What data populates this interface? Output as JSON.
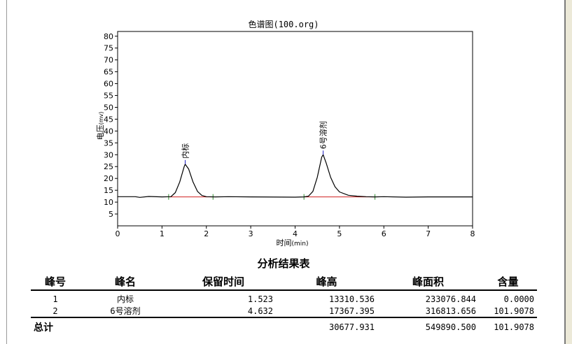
{
  "chart_data": {
    "type": "line",
    "title": "色谱图(100.org)",
    "xlabel_main": "时间",
    "xlabel_unit": "(min)",
    "ylabel_main": "电压",
    "ylabel_unit": "(mv)",
    "xlim": [
      0,
      8
    ],
    "ylim": [
      0,
      82
    ],
    "xticks": [
      0,
      1,
      2,
      3,
      4,
      5,
      6,
      7,
      8
    ],
    "yticks": [
      5,
      10,
      15,
      20,
      25,
      30,
      35,
      40,
      45,
      50,
      55,
      60,
      65,
      70,
      75,
      80
    ],
    "grid": false,
    "baseline": 12.2,
    "series": [
      {
        "x": [
          0.0,
          0.4,
          0.5,
          0.7,
          1.0,
          1.2,
          1.3,
          1.4,
          1.5,
          1.523,
          1.6,
          1.7,
          1.8,
          1.9,
          2.0,
          2.2,
          2.5,
          3.0,
          4.0,
          4.2,
          4.3,
          4.4,
          4.5,
          4.6,
          4.632,
          4.7,
          4.8,
          4.9,
          5.0,
          5.2,
          5.4,
          5.6,
          5.8,
          6.0,
          6.5,
          7.0,
          7.5,
          8.0
        ],
        "values": [
          12.3,
          12.3,
          12.0,
          12.4,
          12.2,
          12.3,
          14.0,
          18.5,
          25.0,
          26.0,
          24.0,
          18.5,
          14.5,
          12.8,
          12.3,
          12.2,
          12.3,
          12.2,
          12.1,
          12.2,
          12.5,
          14.5,
          20.5,
          29.0,
          30.0,
          26.5,
          20.5,
          16.5,
          14.3,
          12.9,
          12.5,
          12.3,
          12.2,
          12.3,
          12.1,
          12.2,
          12.2,
          12.2
        ]
      }
    ],
    "peak_labels": [
      {
        "text": "内标",
        "x": 1.523,
        "y": 26.0
      },
      {
        "text": "6号溶剂",
        "x": 4.632,
        "y": 30.0
      }
    ],
    "integration_lines": [
      {
        "x1": 1.15,
        "x2": 2.15,
        "y": 12.2
      },
      {
        "x1": 4.2,
        "x2": 5.8,
        "y": 12.2
      }
    ],
    "tick_marks": [
      1.15,
      2.15,
      4.2,
      5.8
    ]
  },
  "results": {
    "title": "分析结果表",
    "headers": [
      "峰号",
      "峰名",
      "保留时间",
      "峰高",
      "峰面积",
      "含量"
    ],
    "rows": [
      [
        "1",
        "内标",
        "1.523",
        "13310.536",
        "233076.844",
        "0.0000"
      ],
      [
        "2",
        "6号溶剂",
        "4.632",
        "17367.395",
        "316813.656",
        "101.9078"
      ]
    ],
    "total": {
      "label": "总计",
      "height": "30677.931",
      "area": "549890.500",
      "content": "101.9078"
    }
  },
  "colors": {
    "line": "#000000",
    "baseline": "#d02020",
    "marker": "#2a8a2a",
    "peak_label_tick": "#2020c0"
  }
}
